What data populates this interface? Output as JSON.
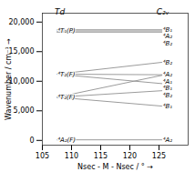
{
  "chart_data": {
    "type": "line",
    "xlabel": "Nsec - M - Nsec / °",
    "ylabel": "Wavenumber / cm⁻¹",
    "x": [
      107.5,
      125.5
    ],
    "series": [
      {
        "values": [
          18700,
          18700
        ],
        "color": "#909090"
      },
      {
        "values": [
          18500,
          18500
        ],
        "color": "#909090"
      },
      {
        "values": [
          18300,
          18300
        ],
        "color": "#909090"
      },
      {
        "values": [
          11200,
          13200
        ],
        "color": "#909090"
      },
      {
        "values": [
          11200,
          11100
        ],
        "color": "#909090"
      },
      {
        "values": [
          11200,
          9600
        ],
        "color": "#909090"
      },
      {
        "values": [
          7300,
          11000
        ],
        "color": "#909090"
      },
      {
        "values": [
          7300,
          8400
        ],
        "color": "#909090"
      },
      {
        "values": [
          7300,
          5800
        ],
        "color": "#909090"
      },
      {
        "values": [
          100,
          100
        ],
        "color": "#909090"
      }
    ],
    "annotations": [
      {
        "text": "⁴T₁(P)",
        "x": 107.6,
        "y": 18500
      },
      {
        "text": "⁴T₂(F)",
        "x": 107.6,
        "y": 11200
      },
      {
        "text": "⁴T₂(F)",
        "x": 107.6,
        "y": 7300
      },
      {
        "text": "⁴A₂(F)",
        "x": 107.6,
        "y": 100
      },
      {
        "text": "⁴B₁",
        "x": 125.65,
        "y": 18700
      },
      {
        "text": "⁴A₂",
        "x": 125.65,
        "y": 18500
      },
      {
        "text": "⁴B₂",
        "x": 125.65,
        "y": 18300
      },
      {
        "text": "⁴B₂",
        "x": 125.65,
        "y": 13200
      },
      {
        "text": "⁴A₂",
        "x": 125.65,
        "y": 11100
      },
      {
        "text": "⁴B₁",
        "x": 125.65,
        "y": 9600
      },
      {
        "text": "⁴A₁",
        "x": 125.65,
        "y": 11000
      },
      {
        "text": "⁴B₂",
        "x": 125.65,
        "y": 8400
      },
      {
        "text": "⁴B₁",
        "x": 125.65,
        "y": 5800
      },
      {
        "text": "⁴A₂",
        "x": 125.65,
        "y": 100
      }
    ],
    "group_labels": [
      {
        "text": "Td",
        "x": 108,
        "y": 21200
      },
      {
        "text": "C₂ᵥ",
        "x": 125.65,
        "y": 21200
      }
    ],
    "xlim": [
      105,
      130
    ],
    "xticks": [
      105,
      110,
      115,
      120,
      125
    ],
    "ylim": [
      -800,
      21500
    ],
    "yticks": [
      0,
      {
        "value": 5000,
        "label": "5,000"
      },
      {
        "value": 10000,
        "label": "10,000"
      },
      {
        "value": 15000,
        "label": "15,000"
      },
      {
        "value": 20000,
        "label": "20,000"
      }
    ]
  }
}
